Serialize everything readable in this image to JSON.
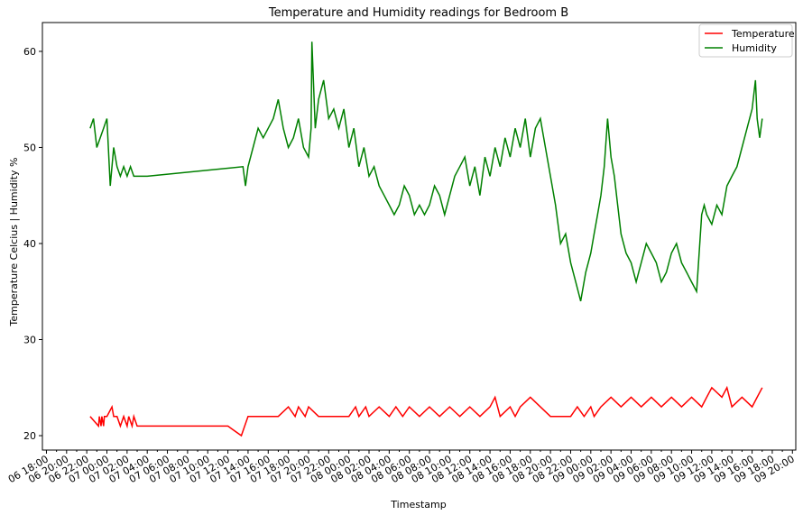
{
  "chart_data": {
    "type": "line",
    "title": "Temperature and Humidity readings for Bedroom B",
    "xlabel": "Timestamp",
    "ylabel": "Temperature Celcius | Humidity %",
    "ylim": [
      18.5,
      63
    ],
    "yticks": [
      20,
      30,
      40,
      50,
      60
    ],
    "xlim": [
      "2020-06-06T17:36",
      "2020-06-09T20:20"
    ],
    "xtick_labels": [
      "06 18:00",
      "06 20:00",
      "06 22:00",
      "07 00:00",
      "07 02:00",
      "07 04:00",
      "07 06:00",
      "07 08:00",
      "07 10:00",
      "07 12:00",
      "07 14:00",
      "07 16:00",
      "07 18:00",
      "07 20:00",
      "07 22:00",
      "08 00:00",
      "08 02:00",
      "08 04:00",
      "08 06:00",
      "08 08:00",
      "08 10:00",
      "08 12:00",
      "08 14:00",
      "08 16:00",
      "08 18:00",
      "08 20:00",
      "08 22:00",
      "09 00:00",
      "09 02:00",
      "09 04:00",
      "09 06:00",
      "09 08:00",
      "09 10:00",
      "09 12:00",
      "09 14:00",
      "09 16:00",
      "09 18:00",
      "09 20:00"
    ],
    "legend": {
      "position": "top-right"
    },
    "grid": false,
    "series": [
      {
        "name": "Temperature",
        "color": "#ff0000",
        "x": [
          "2020-06-06T22:20",
          "2020-06-06T23:10",
          "2020-06-06T23:15",
          "2020-06-06T23:25",
          "2020-06-06T23:30",
          "2020-06-06T23:40",
          "2020-06-06T23:45",
          "2020-06-07T00:00",
          "2020-06-07T00:30",
          "2020-06-07T00:40",
          "2020-06-07T01:00",
          "2020-06-07T01:20",
          "2020-06-07T01:40",
          "2020-06-07T02:00",
          "2020-06-07T02:10",
          "2020-06-07T02:30",
          "2020-06-07T02:40",
          "2020-06-07T03:00",
          "2020-06-07T03:20",
          "2020-06-07T12:00",
          "2020-06-07T13:20",
          "2020-06-07T13:40",
          "2020-06-07T14:00",
          "2020-06-07T15:00",
          "2020-06-07T17:00",
          "2020-06-07T18:00",
          "2020-06-07T18:40",
          "2020-06-07T19:00",
          "2020-06-07T19:40",
          "2020-06-07T20:00",
          "2020-06-07T21:00",
          "2020-06-07T22:00",
          "2020-06-07T23:00",
          "2020-06-08T00:00",
          "2020-06-08T00:40",
          "2020-06-08T01:00",
          "2020-06-08T01:40",
          "2020-06-08T02:00",
          "2020-06-08T03:00",
          "2020-06-08T04:00",
          "2020-06-08T04:40",
          "2020-06-08T05:20",
          "2020-06-08T06:00",
          "2020-06-08T07:00",
          "2020-06-08T08:00",
          "2020-06-08T09:00",
          "2020-06-08T10:00",
          "2020-06-08T11:00",
          "2020-06-08T12:00",
          "2020-06-08T13:00",
          "2020-06-08T14:00",
          "2020-06-08T14:30",
          "2020-06-08T15:00",
          "2020-06-08T16:00",
          "2020-06-08T16:30",
          "2020-06-08T17:00",
          "2020-06-08T18:00",
          "2020-06-08T19:00",
          "2020-06-08T20:00",
          "2020-06-08T21:00",
          "2020-06-08T22:00",
          "2020-06-08T22:40",
          "2020-06-08T23:20",
          "2020-06-09T00:00",
          "2020-06-09T00:20",
          "2020-06-09T01:00",
          "2020-06-09T02:00",
          "2020-06-09T03:00",
          "2020-06-09T04:00",
          "2020-06-09T05:00",
          "2020-06-09T06:00",
          "2020-06-09T07:00",
          "2020-06-09T08:00",
          "2020-06-09T09:00",
          "2020-06-09T10:00",
          "2020-06-09T11:00",
          "2020-06-09T11:30",
          "2020-06-09T12:00",
          "2020-06-09T13:00",
          "2020-06-09T13:30",
          "2020-06-09T14:00",
          "2020-06-09T15:00",
          "2020-06-09T16:00",
          "2020-06-09T16:30",
          "2020-06-09T17:00"
        ],
        "y": [
          22,
          21,
          22,
          21,
          22,
          21,
          22,
          22,
          23,
          22,
          22,
          21,
          22,
          21,
          22,
          21,
          22,
          21,
          21,
          21,
          20,
          21,
          22,
          22,
          22,
          23,
          22,
          23,
          22,
          23,
          22,
          22,
          22,
          22,
          23,
          22,
          23,
          22,
          23,
          22,
          23,
          22,
          23,
          22,
          23,
          22,
          23,
          22,
          23,
          22,
          23,
          24,
          22,
          23,
          22,
          23,
          24,
          23,
          22,
          22,
          22,
          23,
          22,
          23,
          22,
          23,
          24,
          23,
          24,
          23,
          24,
          23,
          24,
          23,
          24,
          23,
          24,
          25,
          24,
          25,
          23,
          24,
          23,
          24,
          25
        ]
      },
      {
        "name": "Humidity",
        "color": "#008000",
        "x": [
          "2020-06-06T22:20",
          "2020-06-06T22:40",
          "2020-06-06T23:00",
          "2020-06-06T23:20",
          "2020-06-06T23:40",
          "2020-06-07T00:00",
          "2020-06-07T00:20",
          "2020-06-07T00:40",
          "2020-06-07T01:00",
          "2020-06-07T01:20",
          "2020-06-07T01:40",
          "2020-06-07T02:00",
          "2020-06-07T02:20",
          "2020-06-07T02:40",
          "2020-06-07T03:00",
          "2020-06-07T04:00",
          "2020-06-07T13:30",
          "2020-06-07T13:45",
          "2020-06-07T14:00",
          "2020-06-07T14:30",
          "2020-06-07T15:00",
          "2020-06-07T15:30",
          "2020-06-07T16:00",
          "2020-06-07T16:30",
          "2020-06-07T17:00",
          "2020-06-07T17:30",
          "2020-06-07T18:00",
          "2020-06-07T18:30",
          "2020-06-07T19:00",
          "2020-06-07T19:30",
          "2020-06-07T20:00",
          "2020-06-07T20:15",
          "2020-06-07T20:20",
          "2020-06-07T20:40",
          "2020-06-07T21:00",
          "2020-06-07T21:30",
          "2020-06-07T22:00",
          "2020-06-07T22:30",
          "2020-06-07T23:00",
          "2020-06-07T23:30",
          "2020-06-08T00:00",
          "2020-06-08T00:30",
          "2020-06-08T01:00",
          "2020-06-08T01:30",
          "2020-06-08T02:00",
          "2020-06-08T02:30",
          "2020-06-08T03:00",
          "2020-06-08T03:30",
          "2020-06-08T04:00",
          "2020-06-08T04:30",
          "2020-06-08T05:00",
          "2020-06-08T05:30",
          "2020-06-08T06:00",
          "2020-06-08T06:30",
          "2020-06-08T07:00",
          "2020-06-08T07:30",
          "2020-06-08T08:00",
          "2020-06-08T08:30",
          "2020-06-08T09:00",
          "2020-06-08T09:30",
          "2020-06-08T10:00",
          "2020-06-08T10:30",
          "2020-06-08T11:00",
          "2020-06-08T11:30",
          "2020-06-08T12:00",
          "2020-06-08T12:30",
          "2020-06-08T13:00",
          "2020-06-08T13:30",
          "2020-06-08T14:00",
          "2020-06-08T14:30",
          "2020-06-08T15:00",
          "2020-06-08T15:30",
          "2020-06-08T16:00",
          "2020-06-08T16:30",
          "2020-06-08T17:00",
          "2020-06-08T17:30",
          "2020-06-08T18:00",
          "2020-06-08T18:30",
          "2020-06-08T19:00",
          "2020-06-08T19:30",
          "2020-06-08T20:00",
          "2020-06-08T20:30",
          "2020-06-08T21:00",
          "2020-06-08T21:30",
          "2020-06-08T22:00",
          "2020-06-08T22:30",
          "2020-06-08T23:00",
          "2020-06-08T23:30",
          "2020-06-09T00:00",
          "2020-06-09T00:20",
          "2020-06-09T00:40",
          "2020-06-09T01:00",
          "2020-06-09T01:20",
          "2020-06-09T01:40",
          "2020-06-09T02:00",
          "2020-06-09T02:20",
          "2020-06-09T02:40",
          "2020-06-09T03:00",
          "2020-06-09T03:30",
          "2020-06-09T04:00",
          "2020-06-09T04:30",
          "2020-06-09T05:00",
          "2020-06-09T05:30",
          "2020-06-09T06:00",
          "2020-06-09T06:30",
          "2020-06-09T07:00",
          "2020-06-09T07:30",
          "2020-06-09T08:00",
          "2020-06-09T08:30",
          "2020-06-09T09:00",
          "2020-06-09T09:30",
          "2020-06-09T10:00",
          "2020-06-09T10:30",
          "2020-06-09T11:00",
          "2020-06-09T11:15",
          "2020-06-09T11:30",
          "2020-06-09T12:00",
          "2020-06-09T12:30",
          "2020-06-09T13:00",
          "2020-06-09T13:30",
          "2020-06-09T14:00",
          "2020-06-09T14:30",
          "2020-06-09T15:00",
          "2020-06-09T15:30",
          "2020-06-09T16:00",
          "2020-06-09T16:20",
          "2020-06-09T16:30",
          "2020-06-09T16:45",
          "2020-06-09T17:00"
        ],
        "y": [
          52,
          53,
          50,
          51,
          52,
          53,
          46,
          50,
          48,
          47,
          48,
          47,
          48,
          47,
          47,
          47,
          48,
          46,
          48,
          50,
          52,
          51,
          52,
          53,
          55,
          52,
          50,
          51,
          53,
          50,
          49,
          52,
          61,
          52,
          55,
          57,
          53,
          54,
          52,
          54,
          50,
          52,
          48,
          50,
          47,
          48,
          46,
          45,
          44,
          43,
          44,
          46,
          45,
          43,
          44,
          43,
          44,
          46,
          45,
          43,
          45,
          47,
          48,
          49,
          46,
          48,
          45,
          49,
          47,
          50,
          48,
          51,
          49,
          52,
          50,
          53,
          49,
          52,
          53,
          50,
          47,
          44,
          40,
          41,
          38,
          36,
          34,
          37,
          39,
          41,
          43,
          45,
          48,
          53,
          49,
          47,
          44,
          41,
          39,
          38,
          36,
          38,
          40,
          39,
          38,
          36,
          37,
          39,
          40,
          38,
          37,
          36,
          35,
          43,
          44,
          43,
          42,
          44,
          43,
          46,
          47,
          48,
          50,
          52,
          54,
          57,
          53,
          51,
          53
        ]
      }
    ]
  }
}
